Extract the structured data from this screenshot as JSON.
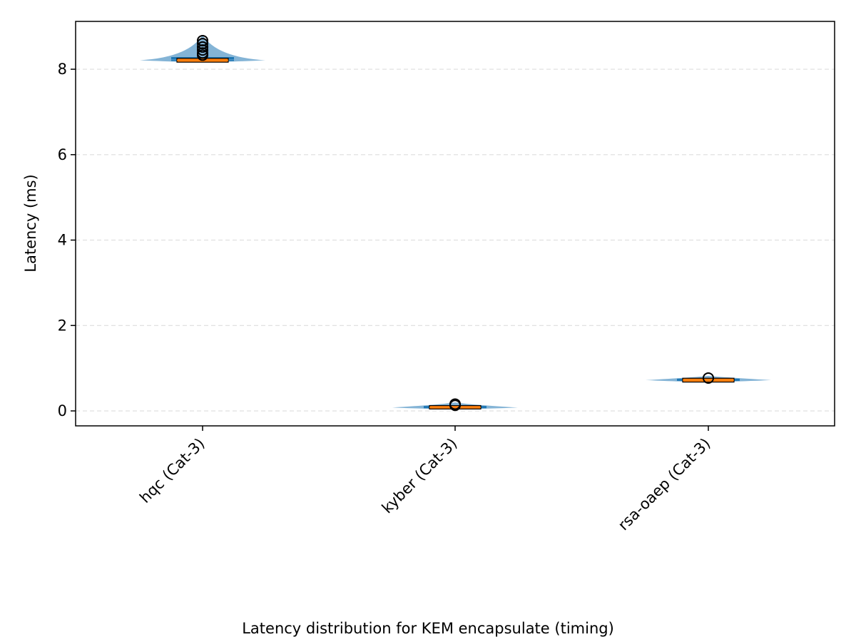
{
  "chart_data": {
    "type": "violin",
    "title": "",
    "caption": "Latency distribution for KEM encapsulate (timing)",
    "xlabel": "",
    "ylabel": "Latency (ms)",
    "ylim": [
      -0.35,
      9.12
    ],
    "yticks": [
      0,
      2,
      4,
      6,
      8
    ],
    "grid": "y-dashed",
    "categories": [
      "hqc (Cat-3)",
      "kyber (Cat-3)",
      "rsa-oaep (Cat-3)"
    ],
    "distributions": [
      {
        "name": "hqc (Cat-3)",
        "min": 8.19,
        "q1": 8.19,
        "median": 8.21,
        "q3": 8.23,
        "max": 8.27,
        "mean": 8.26,
        "violin_range": [
          8.17,
          8.8
        ],
        "outliers": [
          8.33,
          8.38,
          8.45,
          8.52,
          8.6,
          8.67
        ]
      },
      {
        "name": "kyber (Cat-3)",
        "min": 0.07,
        "q1": 0.07,
        "median": 0.08,
        "q3": 0.1,
        "max": 0.11,
        "mean": 0.09,
        "violin_range": [
          0.06,
          0.2
        ],
        "outliers": [
          0.13,
          0.16
        ]
      },
      {
        "name": "rsa-oaep (Cat-3)",
        "min": 0.7,
        "q1": 0.7,
        "median": 0.72,
        "q3": 0.74,
        "max": 0.76,
        "mean": 0.73,
        "violin_range": [
          0.68,
          0.82
        ],
        "outliers": [
          0.77
        ]
      }
    ],
    "colors": {
      "violin": "#1f77b4",
      "box_fill": "#ff7f0e",
      "box_edge": "#000000",
      "grid": "#dddddd"
    }
  }
}
